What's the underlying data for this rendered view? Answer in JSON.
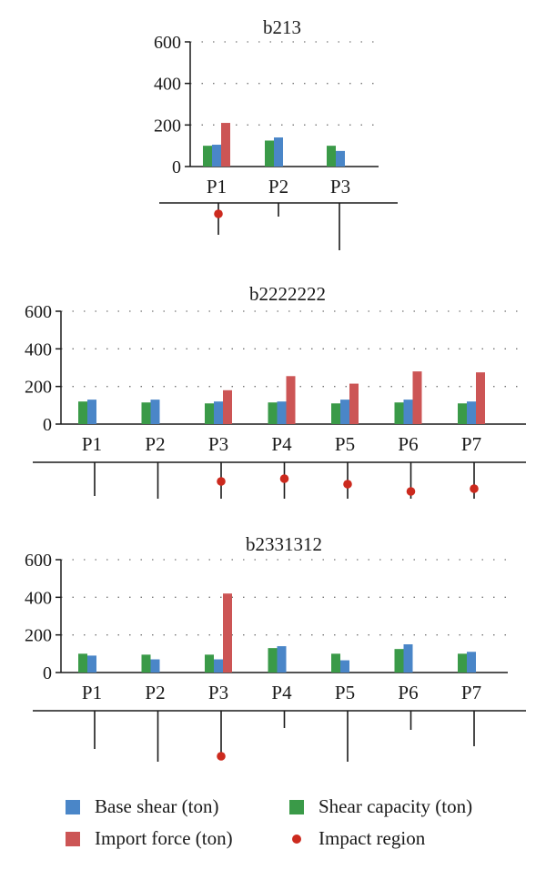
{
  "colors": {
    "base_shear": "#4a86c8",
    "shear_capacity": "#3a9a48",
    "import_force": "#cc5555",
    "impact_region": "#cc2a1e",
    "axis": "#1a1a1a",
    "grid": "#777777"
  },
  "legend": {
    "base_shear": "Base shear (ton)",
    "shear_capacity": "Shear capacity (ton)",
    "import_force": "Import force (ton)",
    "impact_region": "Impact region"
  },
  "chart_data": [
    {
      "type": "bar",
      "title": "b213",
      "categories": [
        "P1",
        "P2",
        "P3"
      ],
      "ylim": [
        0,
        600
      ],
      "yticks": [
        0,
        200,
        400,
        600
      ],
      "grid": "horizontal dotted",
      "series": [
        {
          "name": "Shear capacity (ton)",
          "values": [
            100,
            125,
            100
          ]
        },
        {
          "name": "Base shear (ton)",
          "values": [
            105,
            140,
            75
          ]
        },
        {
          "name": "Import force (ton)",
          "values": [
            210,
            null,
            null
          ]
        }
      ],
      "impact_region": [
        true,
        false,
        false
      ]
    },
    {
      "type": "bar",
      "title": "b2222222",
      "categories": [
        "P1",
        "P2",
        "P3",
        "P4",
        "P5",
        "P6",
        "P7"
      ],
      "ylim": [
        0,
        600
      ],
      "yticks": [
        0,
        200,
        400,
        600
      ],
      "grid": "horizontal dotted",
      "series": [
        {
          "name": "Shear capacity (ton)",
          "values": [
            120,
            115,
            110,
            115,
            110,
            115,
            110
          ]
        },
        {
          "name": "Base shear (ton)",
          "values": [
            130,
            130,
            120,
            120,
            130,
            130,
            120
          ]
        },
        {
          "name": "Import force (ton)",
          "values": [
            null,
            null,
            180,
            255,
            215,
            280,
            275
          ]
        }
      ],
      "impact_region": [
        false,
        false,
        true,
        true,
        true,
        true,
        true
      ]
    },
    {
      "type": "bar",
      "title": "b2331312",
      "categories": [
        "P1",
        "P2",
        "P3",
        "P4",
        "P5",
        "P6",
        "P7"
      ],
      "ylim": [
        0,
        600
      ],
      "yticks": [
        0,
        200,
        400,
        600
      ],
      "grid": "horizontal dotted",
      "series": [
        {
          "name": "Shear capacity (ton)",
          "values": [
            100,
            95,
            95,
            130,
            100,
            125,
            100
          ]
        },
        {
          "name": "Base shear (ton)",
          "values": [
            90,
            70,
            70,
            140,
            65,
            150,
            110
          ]
        },
        {
          "name": "Import force (ton)",
          "values": [
            null,
            null,
            420,
            null,
            null,
            null,
            null
          ]
        }
      ],
      "impact_region": [
        false,
        false,
        true,
        false,
        false,
        false,
        false
      ]
    }
  ]
}
